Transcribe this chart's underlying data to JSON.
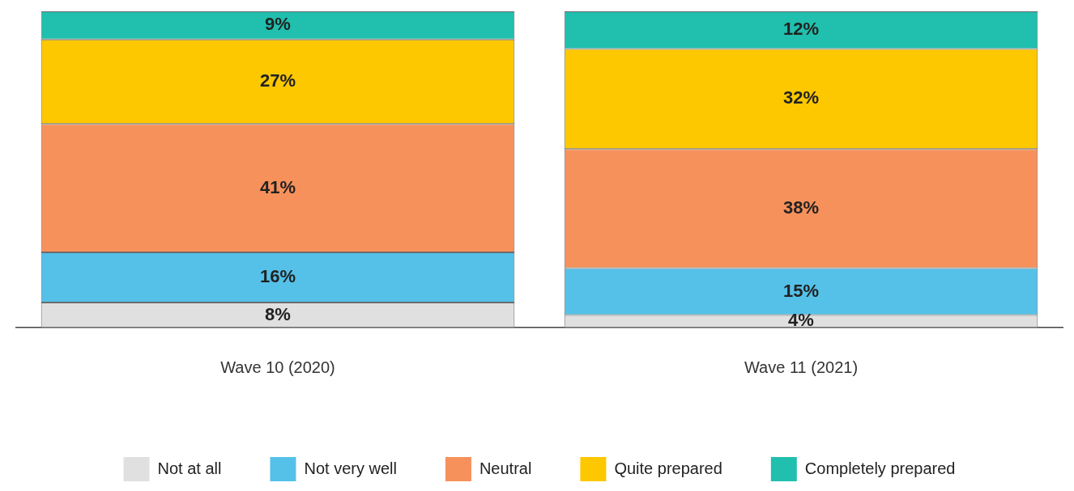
{
  "chart_data": {
    "type": "bar",
    "stacked": true,
    "legend": "bottom",
    "grid": false,
    "categories": [
      "Wave 10 (2020)",
      "Wave 11 (2021)"
    ],
    "series": [
      {
        "name": "Not at all",
        "color": "#e0e0e0",
        "values": [
          8,
          4
        ],
        "value_labels": [
          "8%",
          "4%"
        ]
      },
      {
        "name": "Not very well",
        "color": "#55c1e9",
        "values": [
          16,
          15
        ],
        "value_labels": [
          "16%",
          "15%"
        ]
      },
      {
        "name": "Neutral",
        "color": "#f7915c",
        "values": [
          41,
          38
        ],
        "value_labels": [
          "41%",
          "38%"
        ]
      },
      {
        "name": "Quite prepared",
        "color": "#fdc800",
        "values": [
          27,
          32
        ],
        "value_labels": [
          "27%",
          "32%"
        ]
      },
      {
        "name": "Completely prepared",
        "color": "#20bfae",
        "values": [
          9,
          12
        ],
        "value_labels": [
          "9%",
          "12%"
        ]
      }
    ]
  }
}
